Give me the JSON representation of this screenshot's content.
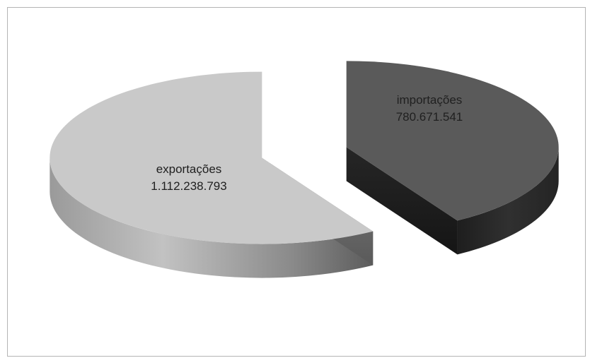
{
  "chart_data": {
    "type": "pie",
    "style": "3d-exploded",
    "title": "",
    "categories": [
      "exportações",
      "importações"
    ],
    "values": [
      1112238793,
      780671541
    ],
    "value_labels": [
      "1.112.238.793",
      "780.671.541"
    ],
    "colors": {
      "exportações": {
        "top": "#c9c9c9",
        "side_dark": "#6e6e6e",
        "side_light": "#bdbdbd"
      },
      "importações": {
        "top": "#5a5a5a",
        "side_dark": "#222222",
        "side_light": "#2e2e2e"
      }
    },
    "legend": "none",
    "data_labels": "category; value"
  }
}
